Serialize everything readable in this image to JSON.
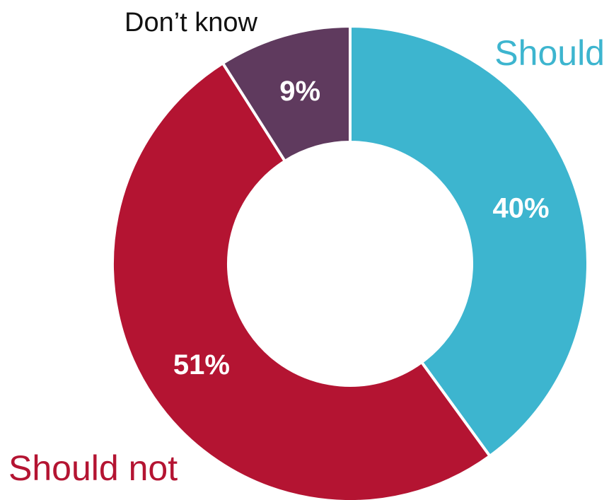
{
  "chart_data": {
    "type": "pie",
    "donut": true,
    "title": "",
    "slices": [
      {
        "label": "Should",
        "value": 40,
        "value_label": "40%",
        "color": "#3db5cf"
      },
      {
        "label": "Should not",
        "value": 51,
        "value_label": "51%",
        "color": "#b41432"
      },
      {
        "label": "Don’t know",
        "value": 9,
        "value_label": "9%",
        "color": "#5f3a5e"
      }
    ],
    "label_colors": {
      "Should": "#3db5cf",
      "Should not": "#b41432",
      "Don’t know": "#111111"
    },
    "start": "top",
    "direction": "clockwise"
  }
}
